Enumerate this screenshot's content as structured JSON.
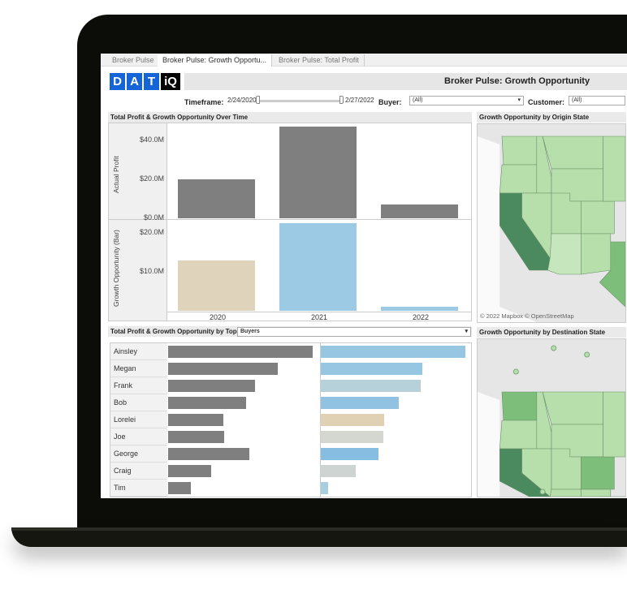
{
  "tabs": [
    {
      "label": "Broker Pulse"
    },
    {
      "label": "Broker Pulse: Growth Opportu..."
    },
    {
      "label": "Broker Pulse: Total Profit"
    }
  ],
  "logo": {
    "letters": [
      "D",
      "A",
      "T",
      "iQ"
    ],
    "brand_color": "#1565d8"
  },
  "header": {
    "title": "Broker Pulse: Growth Opportunity"
  },
  "filters": {
    "timeframe_label": "Timeframe:",
    "start": "2/24/2020",
    "end": "2/27/2022",
    "buyer_label": "Buyer:",
    "buyer_value": "(All)",
    "customer_label": "Customer:",
    "customer_value": "(All)"
  },
  "over_time": {
    "title": "Total Profit & Growth Opportunity Over Time",
    "chart_data": {
      "type": "bar",
      "categories": [
        "2020",
        "2021",
        "2022"
      ],
      "panes": [
        {
          "ylabel": "Actual Profit",
          "ticks": [
            "$40.0M",
            "$20.0M",
            "$0.0M"
          ],
          "tick_values": [
            40,
            20,
            0
          ],
          "ylim": [
            0,
            48
          ],
          "values": [
            20,
            47,
            7
          ],
          "colors": [
            "#7f7f7f",
            "#7f7f7f",
            "#7f7f7f"
          ]
        },
        {
          "ylabel": "Growth Opportunity (Bar)",
          "ticks": [
            "$20.0M",
            "$10.0M"
          ],
          "tick_values": [
            20,
            10
          ],
          "ylim": [
            0,
            23
          ],
          "values": [
            13,
            22.5,
            1
          ],
          "colors": [
            "#e0d3bb",
            "#9ccae4",
            "#9ccae4"
          ]
        }
      ]
    }
  },
  "top10": {
    "title": "Total Profit & Growth Opportunity by Top 10",
    "dimension": "Buyers",
    "chart_data": {
      "type": "bar",
      "categories": [
        "Ainsley",
        "Megan",
        "Frank",
        "Bob",
        "Lorelei",
        "Joe",
        "George",
        "Craig",
        "Tim"
      ],
      "series": [
        {
          "values": [
            1.0,
            0.76,
            0.6,
            0.54,
            0.38,
            0.39,
            0.56,
            0.3,
            0.16
          ],
          "colors": [
            "#7f7f7f"
          ]
        },
        {
          "values": [
            1.0,
            0.7,
            0.69,
            0.54,
            0.44,
            0.43,
            0.4,
            0.24,
            0.05
          ],
          "colors": [
            "#97c6e3",
            "#97c6e3",
            "#b6d1da",
            "#92c2e2",
            "#e0d0b4",
            "#d4d6d0",
            "#86bde0",
            "#cdd4d2",
            "#a8cee0"
          ]
        }
      ]
    }
  },
  "maps": {
    "origin_title": "Growth Opportunity by Origin State",
    "destination_title": "Growth Opportunity by Destination State",
    "attribution": "© 2022 Mapbox  © OpenStreetMap",
    "colors": {
      "dark": "#4b8a5e",
      "mid": "#7dbf7a",
      "light": "#b6dfab",
      "lighter": "#c6e7bd",
      "land": "#e6e6e6",
      "water": "#fafafa"
    }
  }
}
